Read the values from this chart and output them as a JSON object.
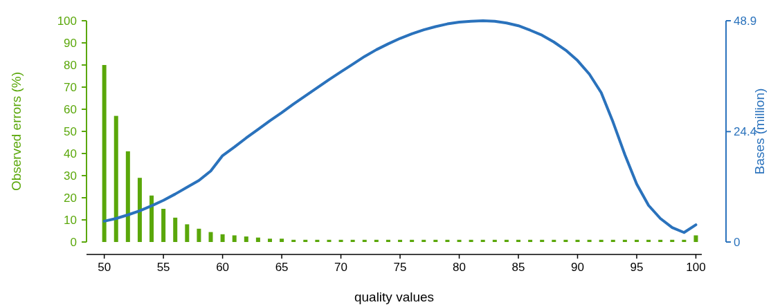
{
  "chart_data": {
    "type": "bar",
    "xlabel": "quality values",
    "ylabel": "Observed errors (%)",
    "y2label": "Bases (million)",
    "x": [
      50,
      51,
      52,
      53,
      54,
      55,
      56,
      57,
      58,
      59,
      60,
      61,
      62,
      63,
      64,
      65,
      66,
      67,
      68,
      69,
      70,
      71,
      72,
      73,
      74,
      75,
      76,
      77,
      78,
      79,
      80,
      81,
      82,
      83,
      84,
      85,
      86,
      87,
      88,
      89,
      90,
      91,
      92,
      93,
      94,
      95,
      96,
      97,
      98,
      99,
      100
    ],
    "xlim": [
      48.5,
      100.5
    ],
    "xticks": [
      50,
      55,
      60,
      65,
      70,
      75,
      80,
      85,
      90,
      95,
      100
    ],
    "ylim": [
      0,
      100
    ],
    "yticks": [
      0,
      10,
      20,
      30,
      40,
      50,
      60,
      70,
      80,
      90,
      100
    ],
    "y2lim": [
      0,
      48.9
    ],
    "y2ticks": [
      0,
      24.4,
      48.9
    ],
    "series": [
      {
        "color": "#5aa70a",
        "values": [
          80,
          57,
          41,
          29,
          21,
          15,
          11,
          8,
          6,
          4.5,
          3.5,
          3,
          2.5,
          2,
          1.5,
          1.5,
          1,
          1,
          1,
          1,
          1,
          1,
          1,
          1,
          1,
          1,
          1,
          1,
          1,
          1,
          1,
          1,
          1,
          1,
          1,
          1,
          1,
          1,
          1,
          1,
          1,
          1,
          1,
          1,
          1,
          1,
          1,
          1,
          1,
          1,
          3
        ]
      },
      {
        "type": "line",
        "axis": "y2",
        "color": "#2a72bc",
        "values": [
          4.6,
          5.2,
          6.0,
          6.9,
          8.0,
          9.2,
          10.6,
          12.1,
          13.6,
          15.7,
          19.1,
          21,
          23,
          24.9,
          26.8,
          28.6,
          30.5,
          32.3,
          34.1,
          35.9,
          37.6,
          39.3,
          41,
          42.5,
          43.8,
          45,
          46,
          46.9,
          47.6,
          48.2,
          48.6,
          48.8,
          48.9,
          48.8,
          48.4,
          47.8,
          46.8,
          45.7,
          44.2,
          42.4,
          40.1,
          37.1,
          33.0,
          26.5,
          19.3,
          12.8,
          8.1,
          5.2,
          3.2,
          2.1,
          3.8
        ]
      }
    ]
  }
}
